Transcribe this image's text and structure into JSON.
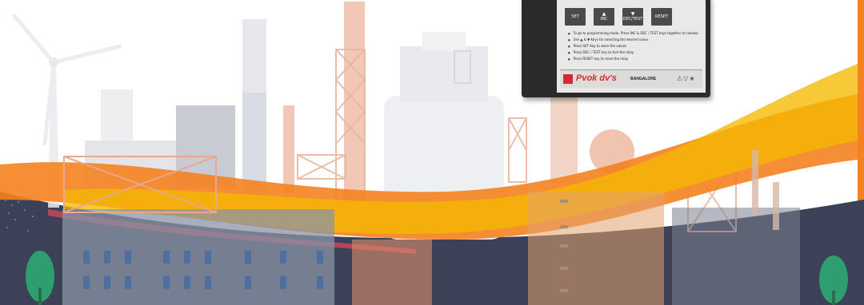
{
  "device": {
    "keys": [
      {
        "arrow": "",
        "label": "SET"
      },
      {
        "arrow": "▲",
        "label": "INC"
      },
      {
        "arrow": "▼",
        "label": "DEC/TEST"
      },
      {
        "arrow": "",
        "label": "RESET"
      }
    ],
    "instructions": [
      "To go to programming mode. Press INC & DEC / TEST keys together to release",
      "Use ▲ & ▼ Keys  for selecting the desired value",
      "Press SET Key to store the values",
      "Press DEC / TEST key to test the relay",
      "Press RESET key to reset the relay"
    ],
    "brand": "Pvok dv's",
    "city": "BANGALORE",
    "icons": "⚠▽★"
  },
  "colors": {
    "orange": "#f58220",
    "gold": "#f5b800",
    "navy": "#3b4257",
    "red": "#d7282f",
    "green": "#2f9e6e"
  }
}
